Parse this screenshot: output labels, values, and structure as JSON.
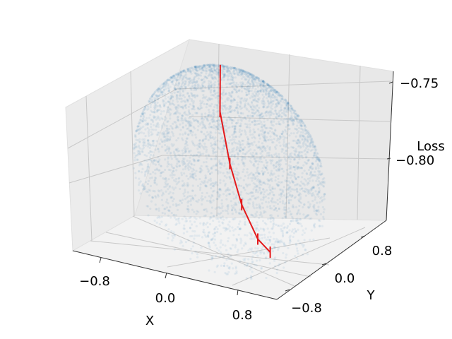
{
  "chart_data": {
    "type": "scatter3d",
    "title": "",
    "xlabel": "X",
    "ylabel": "Y",
    "zlabel": "Loss",
    "xlim": [
      -1.2,
      1.2
    ],
    "ylim": [
      -1.2,
      1.2
    ],
    "zlim": [
      -0.825,
      -0.745
    ],
    "xticks": [
      {
        "value": -0.8,
        "label": "−0.8"
      },
      {
        "value": 0.0,
        "label": "0.0"
      },
      {
        "value": 0.8,
        "label": "0.8"
      }
    ],
    "yticks": [
      {
        "value": -0.8,
        "label": "−0.8"
      },
      {
        "value": 0.0,
        "label": "0.0"
      },
      {
        "value": 0.8,
        "label": "0.8"
      }
    ],
    "zticks": [
      {
        "value": -0.75,
        "label": "−0.75"
      },
      {
        "value": -0.8,
        "label": "−0.80"
      }
    ],
    "grid": true,
    "series": [
      {
        "kind": "scatter",
        "color": "#1f77b4",
        "alpha": 0.08,
        "description": "dense point cloud on a cap surface, unit disk domain"
      },
      {
        "kind": "trajectory",
        "color": "#e41a1c",
        "points": [
          {
            "x": -0.35,
            "y": 0.45,
            "z": -0.748
          },
          {
            "x": -0.3,
            "y": 0.35,
            "z": -0.77
          },
          {
            "x": -0.05,
            "y": 0.1,
            "z": -0.79
          },
          {
            "x": 0.25,
            "y": -0.2,
            "z": -0.803
          },
          {
            "x": 0.6,
            "y": -0.5,
            "z": -0.812
          },
          {
            "x": 0.8,
            "y": -0.6,
            "z": -0.815
          }
        ]
      }
    ]
  }
}
